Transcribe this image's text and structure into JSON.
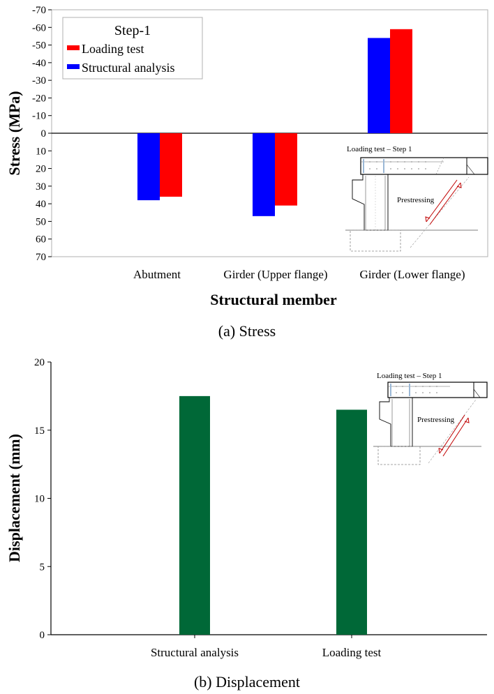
{
  "chart_data": [
    {
      "type": "bar",
      "caption": "(a) Stress",
      "title": "",
      "xlabel": "Structural member",
      "ylabel": "Stress (MPa)",
      "ylim": [
        70,
        -70
      ],
      "y_inverted": true,
      "yticks": [
        -70,
        -60,
        -50,
        -40,
        -30,
        -20,
        -10,
        0,
        10,
        20,
        30,
        40,
        50,
        60,
        70
      ],
      "categories": [
        "Abutment",
        "Girder (Upper flange)",
        "Girder (Lower flange)"
      ],
      "series": [
        {
          "name": "Structural analysis",
          "color": "#0000ff",
          "values": [
            38,
            47,
            -54
          ]
        },
        {
          "name": "Loading test",
          "color": "#ff0000",
          "values": [
            36,
            41,
            -59
          ]
        }
      ],
      "legend": {
        "title": "Step-1",
        "position": "top-left"
      },
      "grid": false,
      "inset": {
        "title": "Loading test – Step 1",
        "label": "Prestressing"
      }
    },
    {
      "type": "bar",
      "caption": "(b) Displacement",
      "title": "",
      "xlabel": "",
      "ylabel": "Displacement (mm)",
      "ylim": [
        0,
        20
      ],
      "yticks": [
        0,
        5,
        10,
        15,
        20
      ],
      "categories": [
        "Structural analysis",
        "Loading test"
      ],
      "values": [
        17.5,
        16.5
      ],
      "color": "#006837",
      "grid": false,
      "inset": {
        "title": "Loading test – Step 1",
        "label": "Prestressing"
      }
    }
  ]
}
